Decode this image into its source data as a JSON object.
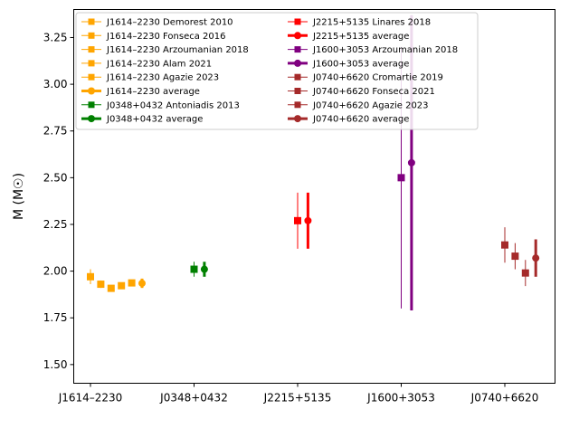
{
  "chart_data": {
    "type": "scatter",
    "title": "",
    "xlabel": "",
    "ylabel": "M (M☉)",
    "ylim": [
      1.4,
      3.4
    ],
    "yticks": [
      1.5,
      1.75,
      2.0,
      2.25,
      2.5,
      2.75,
      3.0,
      3.25
    ],
    "ytick_labels": [
      "1.50",
      "1.75",
      "2.00",
      "2.25",
      "2.50",
      "2.75",
      "3.00",
      "3.25"
    ],
    "categories": [
      "J1614–2230",
      "J0348+0432",
      "J2215+5135",
      "J1600+3053",
      "J0740+6620"
    ],
    "grid": false,
    "legend_placement": "top-left",
    "legend_columns": 2,
    "colors": {
      "J1614–2230": "#ffa500",
      "J0348+0432": "#008000",
      "J2215+5135": "#ff0000",
      "J1600+3053": "#800080",
      "J0740+6620": "#a52a2a"
    },
    "series": [
      {
        "name": "J1614–2230 Demorest 2010",
        "pulsar": "J1614–2230",
        "category_index": 0,
        "offset_index": 0,
        "average": false,
        "y": 1.97,
        "err": 0.04
      },
      {
        "name": "J1614–2230 Fonseca 2016",
        "pulsar": "J1614–2230",
        "category_index": 0,
        "offset_index": 1,
        "average": false,
        "y": 1.93,
        "err": 0.02
      },
      {
        "name": "J1614–2230 Arzoumanian 2018",
        "pulsar": "J1614–2230",
        "category_index": 0,
        "offset_index": 2,
        "average": false,
        "y": 1.908,
        "err": 0.016
      },
      {
        "name": "J1614–2230 Alam 2021",
        "pulsar": "J1614–2230",
        "category_index": 0,
        "offset_index": 3,
        "average": false,
        "y": 1.922,
        "err": 0.015
      },
      {
        "name": "J1614–2230 Agazie 2023",
        "pulsar": "J1614–2230",
        "category_index": 0,
        "offset_index": 4,
        "average": false,
        "y": 1.937,
        "err": 0.014
      },
      {
        "name": "J1614–2230 average",
        "pulsar": "J1614–2230",
        "category_index": 0,
        "offset_index": 5,
        "average": true,
        "y": 1.935,
        "err": 0.025
      },
      {
        "name": "J0348+0432 Antoniadis 2013",
        "pulsar": "J0348+0432",
        "category_index": 1,
        "offset_index": 0,
        "average": false,
        "y": 2.01,
        "err": 0.04
      },
      {
        "name": "J0348+0432 average",
        "pulsar": "J0348+0432",
        "category_index": 1,
        "offset_index": 1,
        "average": true,
        "y": 2.01,
        "err": 0.04
      },
      {
        "name": "J2215+5135 Linares 2018",
        "pulsar": "J2215+5135",
        "category_index": 2,
        "offset_index": 0,
        "average": false,
        "y": 2.27,
        "err": 0.15
      },
      {
        "name": "J2215+5135 average",
        "pulsar": "J2215+5135",
        "category_index": 2,
        "offset_index": 1,
        "average": true,
        "y": 2.27,
        "err": 0.15
      },
      {
        "name": "J1600+3053 Arzoumanian 2018",
        "pulsar": "J1600+3053",
        "category_index": 3,
        "offset_index": 0,
        "average": false,
        "y": 2.5,
        "err": 0.7
      },
      {
        "name": "J1600+3053 average",
        "pulsar": "J1600+3053",
        "category_index": 3,
        "offset_index": 1,
        "average": true,
        "y": 2.58,
        "err": 0.79
      },
      {
        "name": "J0740+6620 Cromartie 2019",
        "pulsar": "J0740+6620",
        "category_index": 4,
        "offset_index": 0,
        "average": false,
        "y": 2.14,
        "err": 0.095
      },
      {
        "name": "J0740+6620 Fonseca 2021",
        "pulsar": "J0740+6620",
        "category_index": 4,
        "offset_index": 1,
        "average": false,
        "y": 2.08,
        "err": 0.07
      },
      {
        "name": "J0740+6620 Agazie 2023",
        "pulsar": "J0740+6620",
        "category_index": 4,
        "offset_index": 2,
        "average": false,
        "y": 1.99,
        "err": 0.07
      },
      {
        "name": "J0740+6620 average",
        "pulsar": "J0740+6620",
        "category_index": 4,
        "offset_index": 3,
        "average": true,
        "y": 2.07,
        "err": 0.1
      }
    ]
  }
}
